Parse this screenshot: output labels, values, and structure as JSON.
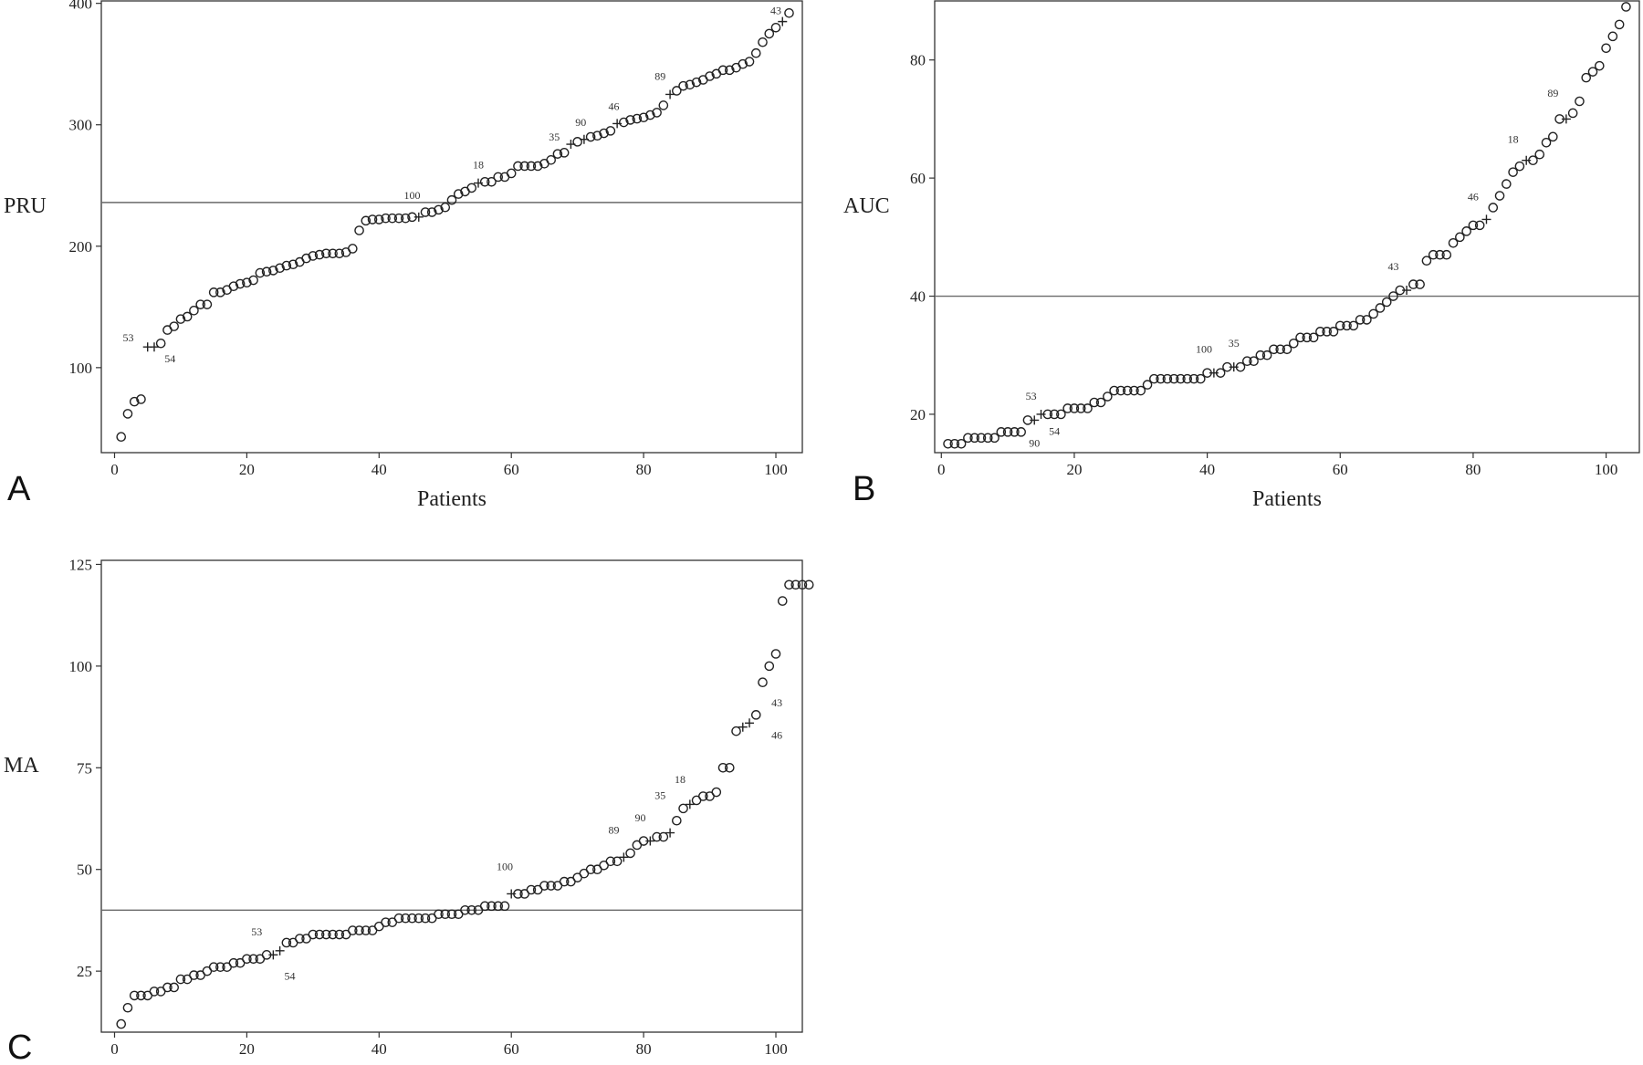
{
  "chart_data": [
    {
      "panel_label": "A",
      "type": "scatter",
      "ylabel": "PRU",
      "xlabel": "Patients",
      "xlim": [
        -2,
        104
      ],
      "ylim": [
        30,
        402
      ],
      "xticks": [
        0,
        20,
        40,
        60,
        80,
        100
      ],
      "yticks": [
        100,
        200,
        300,
        400
      ],
      "reference_line_y": 236,
      "y": [
        43,
        62,
        72,
        74,
        117,
        117,
        120,
        131,
        134,
        140,
        142,
        147,
        152,
        152,
        162,
        162,
        164,
        167,
        169,
        170,
        172,
        178,
        179,
        180,
        182,
        184,
        185,
        187,
        190,
        192,
        193,
        194,
        194,
        194,
        195,
        198,
        213,
        221,
        222,
        222,
        223,
        223,
        223,
        223,
        224,
        224,
        228,
        228,
        230,
        232,
        238,
        243,
        245,
        248,
        252,
        253,
        253,
        257,
        257,
        260,
        266,
        266,
        266,
        266,
        268,
        271,
        276,
        277,
        284,
        286,
        288,
        290,
        291,
        293,
        295,
        301,
        302,
        304,
        305,
        306,
        308,
        310,
        316,
        325,
        328,
        332,
        333,
        335,
        337,
        340,
        342,
        345,
        345,
        347,
        350,
        352,
        359,
        368,
        375,
        380,
        385,
        392
      ],
      "crosses": [
        5,
        6,
        46,
        55,
        69,
        71,
        76,
        84,
        101
      ],
      "annotations": [
        {
          "label": "53",
          "x": 4,
          "y": 117,
          "pos": "above-left"
        },
        {
          "label": "54",
          "x": 7,
          "y": 112,
          "pos": "below-right"
        },
        {
          "label": "100",
          "x": 45,
          "y": 233,
          "pos": "above"
        },
        {
          "label": "18",
          "x": 55,
          "y": 258,
          "pos": "above"
        },
        {
          "label": "35",
          "x": 66.5,
          "y": 281,
          "pos": "above"
        },
        {
          "label": "90",
          "x": 70.5,
          "y": 293,
          "pos": "above"
        },
        {
          "label": "46",
          "x": 75.5,
          "y": 306,
          "pos": "above"
        },
        {
          "label": "89",
          "x": 82.5,
          "y": 331,
          "pos": "above"
        },
        {
          "label": "43",
          "x": 100,
          "y": 385,
          "pos": "above"
        }
      ]
    },
    {
      "panel_label": "B",
      "type": "scatter",
      "ylabel": "AUC",
      "xlabel": "Patients",
      "xlim": [
        -1,
        105
      ],
      "ylim": [
        13.5,
        90
      ],
      "xticks": [
        0,
        20,
        40,
        60,
        80,
        100
      ],
      "yticks": [
        20,
        40,
        60,
        80
      ],
      "reference_line_y": 40,
      "y": [
        15,
        15,
        15,
        16,
        16,
        16,
        16,
        16,
        17,
        17,
        17,
        17,
        19,
        19,
        20,
        20,
        20,
        20,
        21,
        21,
        21,
        21,
        22,
        22,
        23,
        24,
        24,
        24,
        24,
        24,
        25,
        26,
        26,
        26,
        26,
        26,
        26,
        26,
        26,
        27,
        27,
        27,
        28,
        28,
        28,
        29,
        29,
        30,
        30,
        31,
        31,
        31,
        32,
        33,
        33,
        33,
        34,
        34,
        34,
        35,
        35,
        35,
        36,
        36,
        37,
        38,
        39,
        40,
        41,
        41,
        42,
        42,
        46,
        47,
        47,
        47,
        49,
        50,
        51,
        52,
        52,
        53,
        55,
        57,
        59,
        61,
        62,
        63,
        63,
        64,
        66,
        67,
        70,
        70,
        71,
        73,
        77,
        78,
        79,
        82,
        84,
        86,
        89
      ],
      "crosses": [
        14,
        15,
        41,
        44,
        70,
        82,
        88,
        94
      ],
      "annotations": [
        {
          "label": "53",
          "x": 13.5,
          "y": 21.2,
          "pos": "above"
        },
        {
          "label": "90",
          "x": 14,
          "y": 16.7,
          "pos": "below"
        },
        {
          "label": "54",
          "x": 17,
          "y": 18.7,
          "pos": "below"
        },
        {
          "label": "100",
          "x": 39.5,
          "y": 29.2,
          "pos": "above"
        },
        {
          "label": "35",
          "x": 44,
          "y": 30.2,
          "pos": "above"
        },
        {
          "label": "43",
          "x": 68,
          "y": 43.2,
          "pos": "above"
        },
        {
          "label": "46",
          "x": 80,
          "y": 55,
          "pos": "above"
        },
        {
          "label": "18",
          "x": 86,
          "y": 64.7,
          "pos": "above"
        },
        {
          "label": "89",
          "x": 92,
          "y": 72.5,
          "pos": "above"
        }
      ]
    },
    {
      "panel_label": "C",
      "type": "scatter",
      "ylabel": "MA",
      "xlabel": "Patients",
      "xlim": [
        -2,
        104
      ],
      "ylim": [
        10,
        126
      ],
      "xticks": [
        0,
        20,
        40,
        60,
        80,
        100
      ],
      "yticks": [
        25,
        50,
        75,
        100,
        125
      ],
      "reference_line_y": 40,
      "y": [
        12,
        16,
        19,
        19,
        19,
        20,
        20,
        21,
        21,
        23,
        23,
        24,
        24,
        25,
        26,
        26,
        26,
        27,
        27,
        28,
        28,
        28,
        29,
        29,
        30,
        32,
        32,
        33,
        33,
        34,
        34,
        34,
        34,
        34,
        34,
        35,
        35,
        35,
        35,
        36,
        37,
        37,
        38,
        38,
        38,
        38,
        38,
        38,
        39,
        39,
        39,
        39,
        40,
        40,
        40,
        41,
        41,
        41,
        41,
        44,
        44,
        44,
        45,
        45,
        46,
        46,
        46,
        47,
        47,
        48,
        49,
        50,
        50,
        51,
        52,
        52,
        53,
        54,
        56,
        57,
        57,
        58,
        58,
        59,
        62,
        65,
        66,
        67,
        68,
        68,
        69,
        75,
        75,
        84,
        85,
        86,
        88,
        96,
        100,
        103,
        116,
        120,
        120,
        120,
        120
      ],
      "crosses": [
        24,
        25,
        60,
        77,
        81,
        84,
        87,
        95,
        96
      ],
      "annotations": [
        {
          "label": "53",
          "x": 21.5,
          "y": 32,
          "pos": "above"
        },
        {
          "label": "54",
          "x": 26.5,
          "y": 26,
          "pos": "below"
        },
        {
          "label": "100",
          "x": 59,
          "y": 48,
          "pos": "above"
        },
        {
          "label": "89",
          "x": 75.5,
          "y": 57,
          "pos": "above"
        },
        {
          "label": "90",
          "x": 79.5,
          "y": 60,
          "pos": "above"
        },
        {
          "label": "35",
          "x": 82.5,
          "y": 65.5,
          "pos": "above"
        },
        {
          "label": "18",
          "x": 85.5,
          "y": 69.5,
          "pos": "above"
        },
        {
          "label": "43",
          "x": 98.5,
          "y": 91,
          "pos": "right"
        },
        {
          "label": "46",
          "x": 98.5,
          "y": 83,
          "pos": "right"
        }
      ]
    }
  ]
}
